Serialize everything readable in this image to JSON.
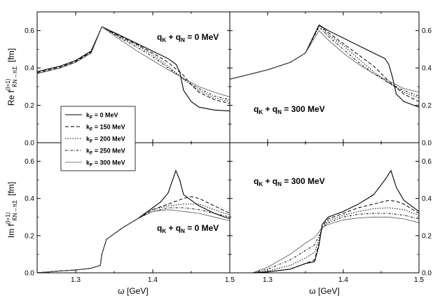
{
  "chart_data": {
    "type": "line",
    "x_label_left": "ω [GeV]",
    "x_label_right": "ω [GeV]",
    "y_label_top": "Re f",
    "y_label_top_sup": "(I=1)",
    "y_label_top_sub": "K̄N→πΣ",
    "y_label_top_unit": "[fm]",
    "y_label_bottom": "Im f",
    "y_label_bottom_sup": "(I=1)",
    "y_label_bottom_sub": "K̄N→πΣ",
    "y_label_bottom_unit": "[fm]",
    "xlim": [
      1.25,
      1.5
    ],
    "x_ticks": [
      "1.3",
      "1.4",
      "1.5"
    ],
    "x_tick_values": [
      1.3,
      1.4,
      1.5
    ],
    "ylim_top": [
      0.0,
      0.7
    ],
    "ylim_bottom": [
      0.0,
      0.7
    ],
    "y_ticks": [
      "0.0",
      "0.2",
      "0.4",
      "0.6"
    ],
    "y_tick_values": [
      0.0,
      0.2,
      0.4,
      0.6
    ],
    "legend": {
      "placement": "bottom-left of top-left panel",
      "entries": [
        {
          "name": "k",
          "sub": "F",
          "value": "= 0 MeV",
          "dash": ""
        },
        {
          "name": "k",
          "sub": "F",
          "value": "= 150 MeV",
          "dash": "5,3"
        },
        {
          "name": "k",
          "sub": "F",
          "value": "= 200 MeV",
          "dash": "1.5,2"
        },
        {
          "name": "k",
          "sub": "F",
          "value": "= 250 MeV",
          "dash": "3,2,1,2"
        },
        {
          "name": "k",
          "sub": "F",
          "value": "= 300 MeV",
          "dash": ""
        }
      ]
    },
    "panels": [
      {
        "id": "re-0",
        "annotation": "q + q = 0 MeV",
        "ann_sub1": "K",
        "ann_sub2": "N",
        "series": [
          {
            "name": "k_F = 0 MeV",
            "x": [
              1.25,
              1.28,
              1.3,
              1.32,
              1.334,
              1.36,
              1.38,
              1.4,
              1.42,
              1.43,
              1.435,
              1.44,
              1.45,
              1.46,
              1.48,
              1.5
            ],
            "y": [
              0.38,
              0.41,
              0.44,
              0.49,
              0.62,
              0.57,
              0.53,
              0.49,
              0.45,
              0.42,
              0.38,
              0.28,
              0.22,
              0.19,
              0.175,
              0.17
            ]
          },
          {
            "name": "k_F = 150 MeV",
            "x": [
              1.25,
              1.28,
              1.3,
              1.32,
              1.334,
              1.36,
              1.38,
              1.4,
              1.42,
              1.44,
              1.45,
              1.46,
              1.48,
              1.5
            ],
            "y": [
              0.375,
              0.405,
              0.435,
              0.485,
              0.62,
              0.565,
              0.525,
              0.48,
              0.43,
              0.36,
              0.31,
              0.27,
              0.23,
              0.21
            ]
          },
          {
            "name": "k_F = 200 MeV",
            "x": [
              1.25,
              1.28,
              1.3,
              1.32,
              1.334,
              1.36,
              1.38,
              1.4,
              1.42,
              1.44,
              1.46,
              1.48,
              1.5
            ],
            "y": [
              0.37,
              0.4,
              0.43,
              0.48,
              0.62,
              0.56,
              0.52,
              0.47,
              0.41,
              0.34,
              0.28,
              0.24,
              0.22
            ]
          },
          {
            "name": "k_F = 250 MeV",
            "x": [
              1.25,
              1.28,
              1.3,
              1.32,
              1.334,
              1.36,
              1.38,
              1.4,
              1.42,
              1.44,
              1.46,
              1.48,
              1.5
            ],
            "y": [
              0.37,
              0.4,
              0.43,
              0.48,
              0.62,
              0.555,
              0.51,
              0.46,
              0.4,
              0.34,
              0.29,
              0.25,
              0.23
            ]
          },
          {
            "name": "k_F = 300 MeV",
            "x": [
              1.25,
              1.28,
              1.3,
              1.32,
              1.334,
              1.36,
              1.38,
              1.4,
              1.42,
              1.44,
              1.46,
              1.48,
              1.5
            ],
            "y": [
              0.37,
              0.4,
              0.43,
              0.48,
              0.62,
              0.545,
              0.49,
              0.44,
              0.39,
              0.345,
              0.3,
              0.27,
              0.245
            ]
          }
        ]
      },
      {
        "id": "re-300",
        "annotation": "q + q = 300 MeV",
        "ann_sub1": "K",
        "ann_sub2": "N",
        "series": [
          {
            "name": "k_F = 0 MeV",
            "x": [
              1.25,
              1.28,
              1.3,
              1.33,
              1.35,
              1.368,
              1.38,
              1.4,
              1.42,
              1.44,
              1.455,
              1.46,
              1.465,
              1.47,
              1.48,
              1.5
            ],
            "y": [
              0.34,
              0.37,
              0.39,
              0.43,
              0.48,
              0.63,
              0.6,
              0.56,
              0.52,
              0.48,
              0.45,
              0.42,
              0.35,
              0.26,
              0.22,
              0.19
            ]
          },
          {
            "name": "k_F = 150 MeV",
            "x": [
              1.25,
              1.28,
              1.3,
              1.33,
              1.35,
              1.368,
              1.38,
              1.4,
              1.42,
              1.44,
              1.46,
              1.48,
              1.5
            ],
            "y": [
              0.34,
              0.37,
              0.39,
              0.43,
              0.48,
              0.63,
              0.59,
              0.53,
              0.47,
              0.41,
              0.33,
              0.26,
              0.22
            ]
          },
          {
            "name": "k_F = 200 MeV",
            "x": [
              1.25,
              1.28,
              1.3,
              1.33,
              1.35,
              1.368,
              1.38,
              1.4,
              1.42,
              1.44,
              1.46,
              1.48,
              1.5
            ],
            "y": [
              0.34,
              0.37,
              0.39,
              0.43,
              0.48,
              0.63,
              0.58,
              0.52,
              0.45,
              0.38,
              0.32,
              0.27,
              0.24
            ]
          },
          {
            "name": "k_F = 250 MeV",
            "x": [
              1.25,
              1.28,
              1.3,
              1.33,
              1.35,
              1.368,
              1.38,
              1.4,
              1.42,
              1.44,
              1.46,
              1.48,
              1.5
            ],
            "y": [
              0.34,
              0.37,
              0.39,
              0.43,
              0.48,
              0.62,
              0.57,
              0.5,
              0.43,
              0.37,
              0.32,
              0.28,
              0.25
            ]
          },
          {
            "name": "k_F = 300 MeV",
            "x": [
              1.25,
              1.28,
              1.3,
              1.33,
              1.35,
              1.368,
              1.38,
              1.4,
              1.42,
              1.44,
              1.46,
              1.48,
              1.5
            ],
            "y": [
              0.34,
              0.37,
              0.39,
              0.43,
              0.48,
              0.6,
              0.55,
              0.48,
              0.42,
              0.37,
              0.33,
              0.29,
              0.27
            ]
          }
        ]
      },
      {
        "id": "im-0",
        "annotation": "q + q = 0 MeV",
        "ann_sub1": "K",
        "ann_sub2": "N",
        "series": [
          {
            "name": "k_F = 0 MeV",
            "x": [
              1.25,
              1.28,
              1.3,
              1.32,
              1.332,
              1.334,
              1.34,
              1.36,
              1.38,
              1.4,
              1.41,
              1.42,
              1.43,
              1.435,
              1.44,
              1.46,
              1.48,
              1.5
            ],
            "y": [
              0.0,
              0.01,
              0.015,
              0.025,
              0.04,
              0.1,
              0.18,
              0.24,
              0.29,
              0.35,
              0.38,
              0.43,
              0.55,
              0.5,
              0.42,
              0.36,
              0.32,
              0.29
            ]
          },
          {
            "name": "k_F = 150 MeV",
            "x": [
              1.25,
              1.28,
              1.3,
              1.32,
              1.332,
              1.334,
              1.34,
              1.36,
              1.38,
              1.4,
              1.42,
              1.44,
              1.45,
              1.46,
              1.48,
              1.5
            ],
            "y": [
              0.0,
              0.01,
              0.015,
              0.025,
              0.04,
              0.1,
              0.18,
              0.24,
              0.29,
              0.34,
              0.37,
              0.4,
              0.41,
              0.4,
              0.36,
              0.32
            ]
          },
          {
            "name": "k_F = 200 MeV",
            "x": [
              1.25,
              1.28,
              1.3,
              1.32,
              1.332,
              1.334,
              1.34,
              1.36,
              1.38,
              1.4,
              1.42,
              1.44,
              1.46,
              1.48,
              1.5
            ],
            "y": [
              0.0,
              0.01,
              0.015,
              0.025,
              0.04,
              0.1,
              0.18,
              0.24,
              0.29,
              0.34,
              0.36,
              0.37,
              0.37,
              0.34,
              0.31
            ]
          },
          {
            "name": "k_F = 250 MeV",
            "x": [
              1.25,
              1.28,
              1.3,
              1.32,
              1.332,
              1.334,
              1.34,
              1.36,
              1.38,
              1.4,
              1.42,
              1.44,
              1.46,
              1.48,
              1.5
            ],
            "y": [
              0.0,
              0.01,
              0.015,
              0.025,
              0.04,
              0.1,
              0.18,
              0.24,
              0.29,
              0.33,
              0.35,
              0.35,
              0.34,
              0.32,
              0.3
            ]
          },
          {
            "name": "k_F = 300 MeV",
            "x": [
              1.25,
              1.28,
              1.3,
              1.32,
              1.332,
              1.334,
              1.34,
              1.36,
              1.38,
              1.4,
              1.42,
              1.44,
              1.46,
              1.48,
              1.5
            ],
            "y": [
              0.0,
              0.01,
              0.015,
              0.025,
              0.04,
              0.1,
              0.18,
              0.24,
              0.29,
              0.33,
              0.34,
              0.33,
              0.32,
              0.3,
              0.28
            ]
          }
        ]
      },
      {
        "id": "im-300",
        "annotation": "q + q = 300 MeV",
        "ann_sub1": "K",
        "ann_sub2": "N",
        "series": [
          {
            "name": "k_F = 0 MeV",
            "x": [
              1.28,
              1.3,
              1.33,
              1.35,
              1.362,
              1.368,
              1.372,
              1.38,
              1.4,
              1.42,
              1.44,
              1.455,
              1.463,
              1.47,
              1.48,
              1.5
            ],
            "y": [
              0.0,
              0.005,
              0.02,
              0.05,
              0.06,
              0.15,
              0.26,
              0.3,
              0.33,
              0.37,
              0.42,
              0.5,
              0.55,
              0.46,
              0.39,
              0.33
            ]
          },
          {
            "name": "k_F = 150 MeV",
            "x": [
              1.28,
              1.3,
              1.33,
              1.35,
              1.362,
              1.368,
              1.372,
              1.38,
              1.4,
              1.42,
              1.44,
              1.46,
              1.47,
              1.48,
              1.5
            ],
            "y": [
              0.0,
              0.005,
              0.02,
              0.05,
              0.07,
              0.16,
              0.25,
              0.29,
              0.32,
              0.35,
              0.37,
              0.39,
              0.385,
              0.37,
              0.32
            ]
          },
          {
            "name": "k_F = 200 MeV",
            "x": [
              1.28,
              1.3,
              1.33,
              1.35,
              1.362,
              1.368,
              1.372,
              1.38,
              1.4,
              1.42,
              1.44,
              1.46,
              1.48,
              1.5
            ],
            "y": [
              0.0,
              0.01,
              0.04,
              0.08,
              0.11,
              0.18,
              0.24,
              0.28,
              0.31,
              0.33,
              0.345,
              0.35,
              0.34,
              0.31
            ]
          },
          {
            "name": "k_F = 250 MeV",
            "x": [
              1.28,
              1.3,
              1.33,
              1.35,
              1.362,
              1.368,
              1.372,
              1.38,
              1.4,
              1.42,
              1.44,
              1.46,
              1.48,
              1.5
            ],
            "y": [
              0.0,
              0.02,
              0.07,
              0.12,
              0.15,
              0.2,
              0.24,
              0.27,
              0.3,
              0.315,
              0.32,
              0.32,
              0.31,
              0.29
            ]
          },
          {
            "name": "k_F = 300 MeV",
            "x": [
              1.28,
              1.3,
              1.33,
              1.35,
              1.362,
              1.368,
              1.372,
              1.38,
              1.4,
              1.42,
              1.44,
              1.46,
              1.48,
              1.5
            ],
            "y": [
              0.0,
              0.03,
              0.1,
              0.16,
              0.19,
              0.22,
              0.245,
              0.26,
              0.285,
              0.295,
              0.3,
              0.3,
              0.29,
              0.27
            ]
          }
        ]
      }
    ]
  }
}
